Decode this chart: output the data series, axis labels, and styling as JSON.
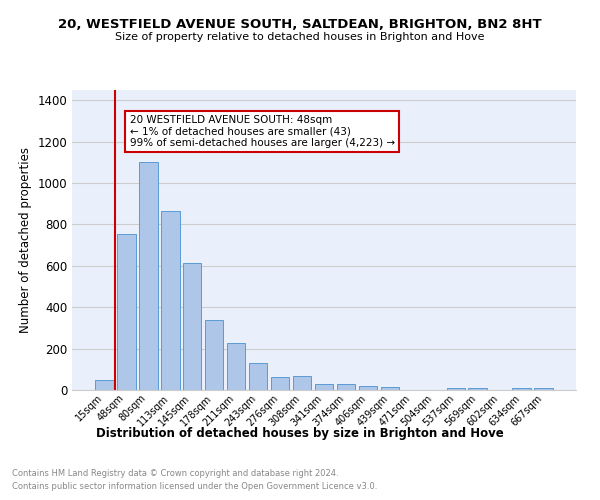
{
  "title1": "20, WESTFIELD AVENUE SOUTH, SALTDEAN, BRIGHTON, BN2 8HT",
  "title2": "Size of property relative to detached houses in Brighton and Hove",
  "xlabel": "Distribution of detached houses by size in Brighton and Hove",
  "ylabel": "Number of detached properties",
  "footnote1": "Contains HM Land Registry data © Crown copyright and database right 2024.",
  "footnote2": "Contains public sector information licensed under the Open Government Licence v3.0.",
  "bar_labels": [
    "15sqm",
    "48sqm",
    "80sqm",
    "113sqm",
    "145sqm",
    "178sqm",
    "211sqm",
    "243sqm",
    "276sqm",
    "308sqm",
    "341sqm",
    "374sqm",
    "406sqm",
    "439sqm",
    "471sqm",
    "504sqm",
    "537sqm",
    "569sqm",
    "602sqm",
    "634sqm",
    "667sqm"
  ],
  "bar_values": [
    48,
    755,
    1100,
    865,
    612,
    340,
    228,
    130,
    65,
    68,
    28,
    28,
    20,
    15,
    0,
    0,
    10,
    12,
    0,
    12,
    12
  ],
  "bar_color": "#aec6e8",
  "bar_edge_color": "#5b9bd5",
  "red_line_x": 0.5,
  "annotation_text": "20 WESTFIELD AVENUE SOUTH: 48sqm\n← 1% of detached houses are smaller (43)\n99% of semi-detached houses are larger (4,223) →",
  "annotation_box_color": "#ffffff",
  "annotation_box_edge": "#cc0000",
  "red_line_color": "#cc0000",
  "grid_color": "#cccccc",
  "bg_color": "#eaf0fb",
  "ylim": [
    0,
    1450
  ],
  "yticks": [
    0,
    200,
    400,
    600,
    800,
    1000,
    1200,
    1400
  ]
}
